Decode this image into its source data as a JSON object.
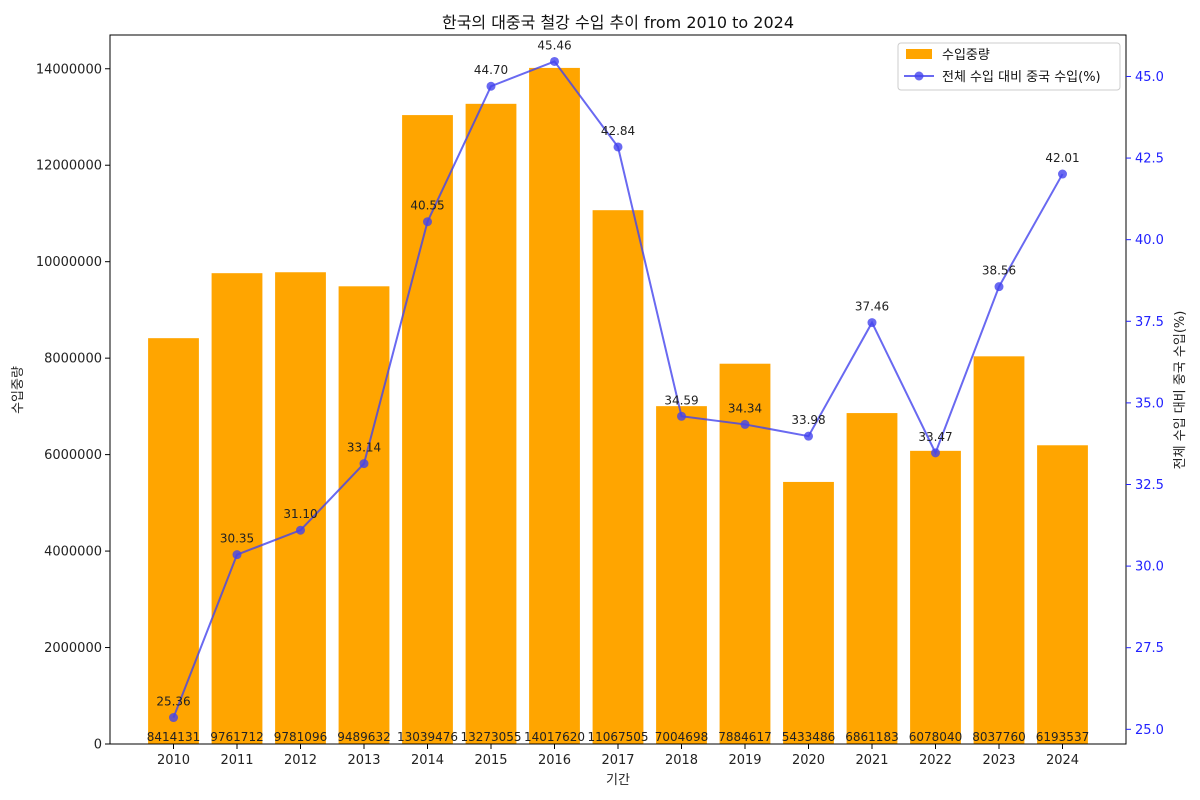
{
  "chart_data": {
    "type": "bar",
    "title": "한국의 대중국 철강 수입 추이 from 2010 to 2024",
    "xlabel": "기간",
    "ylabel": "수입중량",
    "y2label": "전체 수입 대비 중국 수입(%)",
    "categories": [
      "2010",
      "2011",
      "2012",
      "2013",
      "2014",
      "2015",
      "2016",
      "2017",
      "2018",
      "2019",
      "2020",
      "2021",
      "2022",
      "2023",
      "2024"
    ],
    "series": [
      {
        "name": "수입중량",
        "type": "bar",
        "color": "#FFA500",
        "axis": "left",
        "values": [
          8414131,
          9761712,
          9781096,
          9489632,
          13039476,
          13273055,
          14017620,
          11067505,
          7004698,
          7884617,
          5433486,
          6861183,
          6078040,
          8037760,
          6193537
        ]
      },
      {
        "name": "전체 수입 대비 중국 수입(%)",
        "type": "line",
        "color": "#4444ee",
        "axis": "right",
        "values": [
          25.36,
          30.35,
          31.1,
          33.14,
          40.55,
          44.7,
          45.46,
          42.84,
          34.59,
          34.34,
          33.98,
          37.46,
          33.47,
          38.56,
          42.01
        ]
      }
    ],
    "bar_labels": [
      "8414131",
      "9761712",
      "9781096",
      "9489632",
      "13039476",
      "13273055",
      "14017620",
      "11067505",
      "7004698",
      "7884617",
      "5433486",
      "6861183",
      "6078040",
      "8037760",
      "6193537"
    ],
    "point_labels": [
      "25.36",
      "30.35",
      "31.10",
      "33.14",
      "40.55",
      "44.70",
      "45.46",
      "42.84",
      "34.59",
      "34.34",
      "33.98",
      "37.46",
      "33.47",
      "38.56",
      "42.01"
    ],
    "ylim": [
      0,
      14700000
    ],
    "y_ticks": [
      0,
      2000000,
      4000000,
      6000000,
      8000000,
      10000000,
      12000000,
      14000000
    ],
    "y_tick_labels": [
      "0",
      "2000000",
      "4000000",
      "6000000",
      "8000000",
      "10000000",
      "12000000",
      "14000000"
    ],
    "y2lim": [
      24.55,
      46.27
    ],
    "y2_ticks": [
      25.0,
      27.5,
      30.0,
      32.5,
      35.0,
      37.5,
      40.0,
      42.5,
      45.0
    ],
    "y2_tick_labels": [
      "25.0",
      "27.5",
      "30.0",
      "32.5",
      "35.0",
      "37.5",
      "40.0",
      "42.5",
      "45.0"
    ],
    "legend_position": "top-right",
    "grid": false
  }
}
